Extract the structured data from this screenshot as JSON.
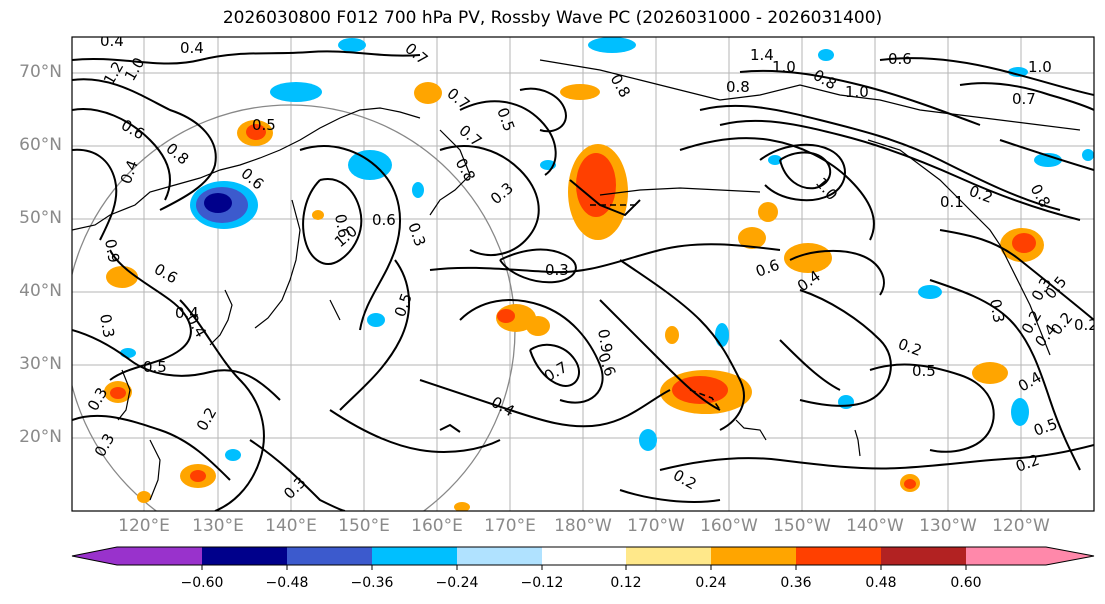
{
  "title": "2026030800 F012 700 hPa PV, Rossby Wave PC (2026031000 - 2026031400)",
  "lat_labels": [
    "70°N",
    "60°N",
    "50°N",
    "40°N",
    "30°N",
    "20°N"
  ],
  "lon_labels": [
    "120°E",
    "130°E",
    "140°E",
    "150°E",
    "160°E",
    "170°E",
    "180°W",
    "170°W",
    "160°W",
    "150°W",
    "140°W",
    "130°W",
    "120°W"
  ],
  "colorbar": {
    "ticks": [
      "−0.60",
      "−0.48",
      "−0.36",
      "−0.24",
      "−0.12",
      "0.12",
      "0.24",
      "0.36",
      "0.48",
      "0.60"
    ],
    "colors": [
      "#9932cc",
      "#00008b",
      "#3c5acd",
      "#00bfff",
      "#b0e2ff",
      "#ffffff",
      "#ffe88a",
      "#ffa500",
      "#ff4000",
      "#b22222",
      "#ff88aa"
    ]
  },
  "contour_labels": [
    "0.4",
    "0.4",
    "1.2",
    "1.0",
    "0.6",
    "0.8",
    "0.5",
    "0.7",
    "0.7",
    "0.8",
    "0.5",
    "0.7",
    "1.4",
    "1.0",
    "0.8",
    "0.8",
    "1.0",
    "0.6",
    "1.0",
    "0.7",
    "0.8",
    "1.0",
    "0.6",
    "0.4",
    "0.9",
    "0.6",
    "0.6",
    "0.3",
    "0.6",
    "1.0",
    "0.8",
    "0.3",
    "0.3",
    "0.2",
    "0.1",
    "0.3",
    "0.6",
    "0.4",
    "0.5",
    "0.4",
    "0.3",
    "0.3",
    "0.2",
    "0.5",
    "0.9",
    "0.7",
    "0.6",
    "0.2",
    "0.5",
    "0.3",
    "0.4",
    "0.4",
    "0.2",
    "0.3",
    "0.2",
    "0.2",
    "0.5",
    "0.4",
    "0.4",
    "0.5",
    "0.2",
    "0.3",
    "0.2"
  ]
}
